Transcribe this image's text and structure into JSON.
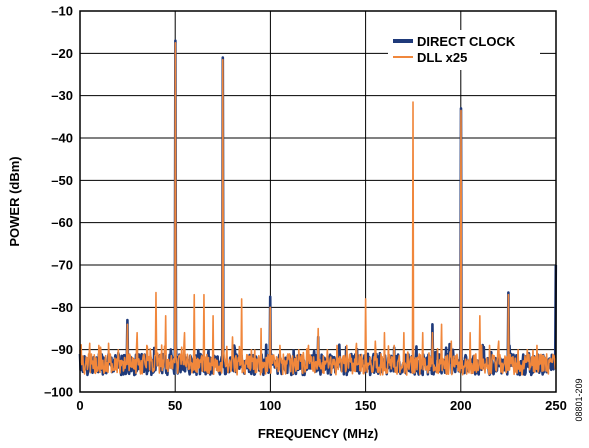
{
  "chart_data": {
    "type": "line",
    "title": "",
    "xlabel": "FREQUENCY (MHz)",
    "ylabel": "POWER (dBm)",
    "xlim": [
      0,
      250
    ],
    "ylim": [
      -100,
      -10
    ],
    "x_ticks": [
      0,
      50,
      100,
      150,
      200,
      250
    ],
    "y_ticks": [
      -10,
      -20,
      -30,
      -40,
      -50,
      -60,
      -70,
      -80,
      -90,
      -100
    ],
    "grid": true,
    "legend_position": "top-right",
    "noise_floor": {
      "min": -96,
      "max": -91
    },
    "series": [
      {
        "name": "DIRECT CLOCK",
        "color": "#1f3a7a",
        "peaks": [
          {
            "x": 0,
            "y": -91
          },
          {
            "x": 25,
            "y": -83
          },
          {
            "x": 50,
            "y": -17
          },
          {
            "x": 75,
            "y": -21
          },
          {
            "x": 100,
            "y": -77.5
          },
          {
            "x": 125,
            "y": -87
          },
          {
            "x": 175,
            "y": -92
          },
          {
            "x": 185,
            "y": -84
          },
          {
            "x": 200,
            "y": -33
          },
          {
            "x": 225,
            "y": -76.5
          },
          {
            "x": 250,
            "y": -70
          }
        ]
      },
      {
        "name": "DLL x25",
        "color": "#f0873c",
        "peaks": [
          {
            "x": 0,
            "y": -90
          },
          {
            "x": 5,
            "y": -88.5
          },
          {
            "x": 10,
            "y": -89
          },
          {
            "x": 15,
            "y": -88.5
          },
          {
            "x": 20,
            "y": -90
          },
          {
            "x": 25,
            "y": -84
          },
          {
            "x": 30,
            "y": -86
          },
          {
            "x": 35,
            "y": -89
          },
          {
            "x": 40,
            "y": -76.5
          },
          {
            "x": 45,
            "y": -82
          },
          {
            "x": 50,
            "y": -17.5
          },
          {
            "x": 55,
            "y": -86
          },
          {
            "x": 60,
            "y": -77
          },
          {
            "x": 65,
            "y": -77
          },
          {
            "x": 70,
            "y": -82
          },
          {
            "x": 75,
            "y": -21.5
          },
          {
            "x": 80,
            "y": -87
          },
          {
            "x": 85,
            "y": -78
          },
          {
            "x": 90,
            "y": -90
          },
          {
            "x": 95,
            "y": -85
          },
          {
            "x": 100,
            "y": -80
          },
          {
            "x": 105,
            "y": -89
          },
          {
            "x": 110,
            "y": -91
          },
          {
            "x": 115,
            "y": -90
          },
          {
            "x": 120,
            "y": -89
          },
          {
            "x": 125,
            "y": -85
          },
          {
            "x": 130,
            "y": -90
          },
          {
            "x": 135,
            "y": -89
          },
          {
            "x": 140,
            "y": -89
          },
          {
            "x": 145,
            "y": -90
          },
          {
            "x": 150,
            "y": -78
          },
          {
            "x": 155,
            "y": -88
          },
          {
            "x": 160,
            "y": -86
          },
          {
            "x": 165,
            "y": -89
          },
          {
            "x": 170,
            "y": -86
          },
          {
            "x": 175,
            "y": -31.5
          },
          {
            "x": 180,
            "y": -86
          },
          {
            "x": 185,
            "y": -86
          },
          {
            "x": 190,
            "y": -84
          },
          {
            "x": 195,
            "y": -88
          },
          {
            "x": 200,
            "y": -33.5
          },
          {
            "x": 205,
            "y": -86
          },
          {
            "x": 210,
            "y": -82
          },
          {
            "x": 215,
            "y": -89
          },
          {
            "x": 220,
            "y": -88
          },
          {
            "x": 225,
            "y": -77
          },
          {
            "x": 230,
            "y": -90
          },
          {
            "x": 235,
            "y": -90
          },
          {
            "x": 240,
            "y": -89
          },
          {
            "x": 245,
            "y": -91
          },
          {
            "x": 250,
            "y": -92
          }
        ]
      }
    ],
    "figure_id": "08801-209"
  }
}
